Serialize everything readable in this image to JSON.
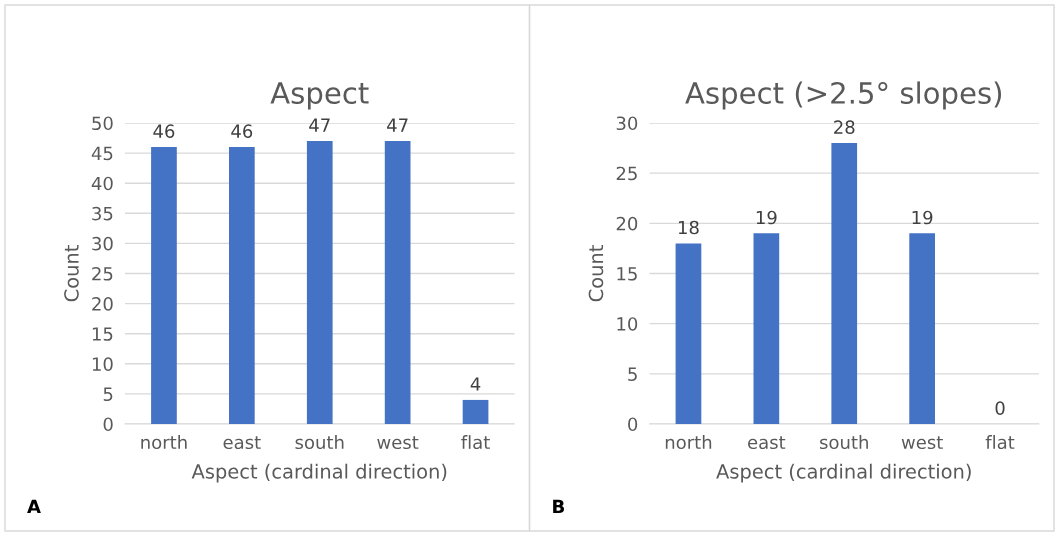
{
  "chart_data": [
    {
      "type": "bar",
      "title": "Aspect",
      "xlabel": "Aspect (cardinal direction)",
      "ylabel": "Count",
      "categories": [
        "north",
        "east",
        "south",
        "west",
        "flat"
      ],
      "values": [
        46,
        46,
        47,
        47,
        4
      ],
      "color": "#4472c4",
      "ylim": [
        0,
        50
      ],
      "yticks": [
        0,
        5,
        10,
        15,
        20,
        25,
        30,
        35,
        40,
        45,
        50
      ],
      "grid": "y",
      "data_labels": true,
      "annotations": [
        "A"
      ]
    },
    {
      "type": "bar",
      "title": "Aspect (>2.5° slopes)",
      "xlabel": "Aspect (cardinal direction)",
      "ylabel": "Count",
      "categories": [
        "north",
        "east",
        "south",
        "west",
        "flat"
      ],
      "values": [
        18,
        19,
        28,
        19,
        0
      ],
      "color": "#4472c4",
      "ylim": [
        0,
        30
      ],
      "yticks": [
        0,
        5,
        10,
        15,
        20,
        25,
        30
      ],
      "grid": "y",
      "data_labels": true,
      "annotations": [
        "B"
      ]
    }
  ]
}
